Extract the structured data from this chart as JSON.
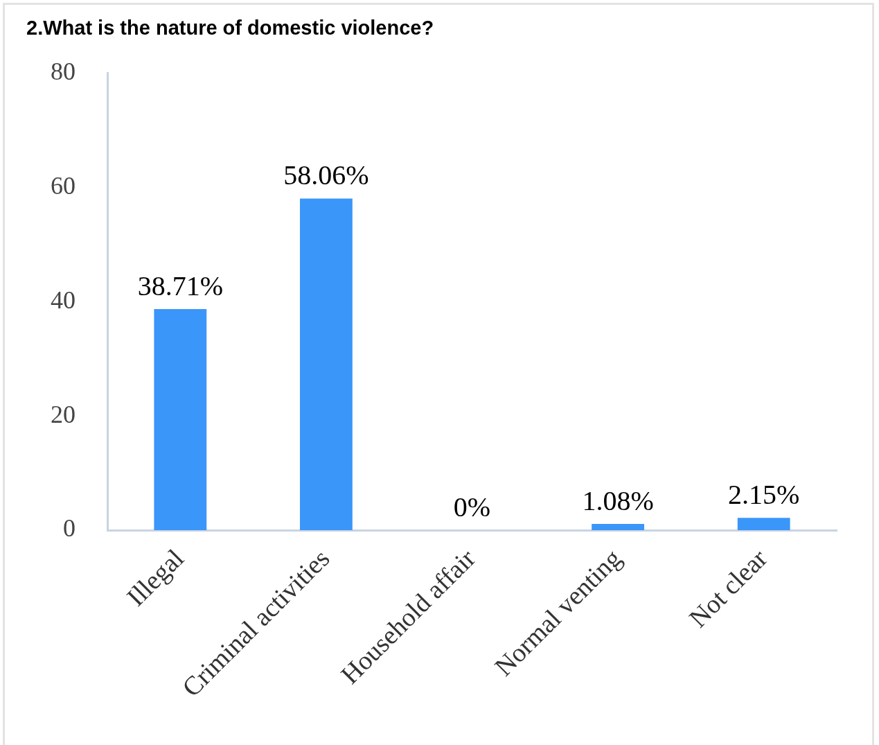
{
  "chart_data": {
    "type": "bar",
    "title": "2.What is the nature of domestic violence?",
    "categories": [
      "Illegal",
      "Criminal activities",
      "Household affair",
      "Normal venting",
      "Not clear"
    ],
    "values": [
      38.71,
      58.06,
      0,
      1.08,
      2.15
    ],
    "value_labels": [
      "38.71%",
      "58.06%",
      "0%",
      "1.08%",
      "2.15%"
    ],
    "color": "#3a96f9",
    "ylim": [
      0,
      80
    ],
    "yticks": [
      0,
      20,
      40,
      60,
      80
    ],
    "grid": false,
    "legend": false
  }
}
